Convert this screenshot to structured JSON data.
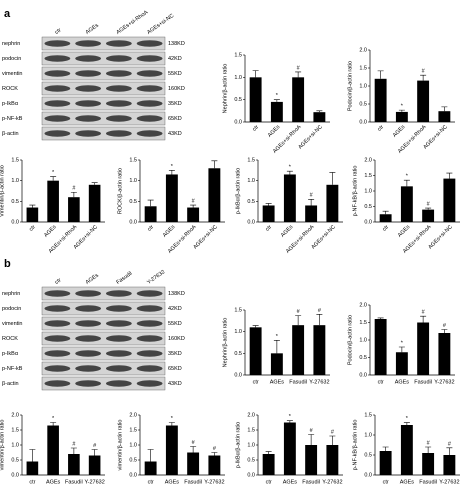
{
  "panel_a": {
    "label": "a",
    "lanes": [
      "ctr",
      "AGEs",
      "AGEs+si-RhoA",
      "AGEs+si-NC"
    ],
    "proteins": [
      "nephrin",
      "podocin",
      "vimentin",
      "ROCK",
      "p-IkBα",
      "p-NF-kB",
      "β-actin"
    ],
    "sizes": [
      "138KD",
      "42KD",
      "55KD",
      "160KD",
      "35KD",
      "65KD",
      "43KD"
    ]
  },
  "panel_b": {
    "label": "b",
    "lanes": [
      "ctr",
      "AGEs",
      "Fasudil",
      "Y-27632"
    ],
    "proteins": [
      "nephrin",
      "podocin",
      "vimentin",
      "ROCK",
      "p-IkBα",
      "p-NF-kB",
      "β-actin"
    ],
    "sizes": [
      "138KD",
      "42KD",
      "55KD",
      "160KD",
      "35KD",
      "65KD",
      "43KD"
    ]
  },
  "chart_data": [
    {
      "type": "bar",
      "ylabel": "Nephrin/β-actin ratio",
      "categories": [
        "ctr",
        "AGEs",
        "AGEs+si-RhoA",
        "AGEs+si-NC"
      ],
      "values": [
        1.0,
        0.45,
        1.0,
        0.22
      ],
      "errors": [
        0.15,
        0.05,
        0.12,
        0.03
      ],
      "annotations": [
        null,
        "*",
        "#",
        null
      ],
      "color": "#000000",
      "ylim": [
        0,
        1.5
      ],
      "yticks": [
        {
          "value": 0,
          "label": "0.0"
        },
        {
          "value": 0.5,
          "label": "0.5"
        },
        {
          "value": 1,
          "label": "1.0"
        },
        {
          "value": 1.5,
          "label": "1.5"
        }
      ]
    },
    {
      "type": "bar",
      "ylabel": "Podocin/β-actin ratio",
      "categories": [
        "ctr",
        "AGEs",
        "AGEs+si-RhoA",
        "AGEs+si-NC"
      ],
      "values": [
        1.2,
        0.28,
        1.15,
        0.3
      ],
      "errors": [
        0.22,
        0.05,
        0.15,
        0.12
      ],
      "annotations": [
        null,
        "*",
        "#",
        null
      ],
      "color": "#000000",
      "ylim": [
        0,
        2
      ],
      "yticks": [
        {
          "value": 0,
          "label": "0.0"
        },
        {
          "value": 0.5,
          "label": "0.5"
        },
        {
          "value": 1,
          "label": "1.0"
        },
        {
          "value": 1.5,
          "label": "1.5"
        },
        {
          "value": 2,
          "label": "2.0"
        }
      ]
    },
    {
      "type": "bar",
      "ylabel": "Vimentin/β-actin ratio",
      "categories": [
        "ctr",
        "AGEs",
        "AGEs+si-RhoA",
        "AGEs+si-NC"
      ],
      "values": [
        0.35,
        1.0,
        0.6,
        0.9
      ],
      "errors": [
        0.06,
        0.1,
        0.12,
        0.05
      ],
      "annotations": [
        null,
        "*",
        "#",
        null
      ],
      "color": "#000000",
      "ylim": [
        0,
        1.5
      ],
      "yticks": [
        {
          "value": 0,
          "label": "0.0"
        },
        {
          "value": 0.5,
          "label": "0.5"
        },
        {
          "value": 1,
          "label": "1.0"
        },
        {
          "value": 1.5,
          "label": "1.5"
        }
      ]
    },
    {
      "type": "bar",
      "ylabel": "ROCK/β-actin ratio",
      "categories": [
        "ctr",
        "AGEs",
        "AGEs+si-RhoA",
        "AGEs+si-NC"
      ],
      "values": [
        0.38,
        1.15,
        0.35,
        1.3
      ],
      "errors": [
        0.15,
        0.1,
        0.06,
        0.18
      ],
      "annotations": [
        null,
        "*",
        "#",
        null
      ],
      "color": "#000000",
      "ylim": [
        0,
        1.5
      ],
      "yticks": [
        {
          "value": 0,
          "label": "0.0"
        },
        {
          "value": 0.5,
          "label": "0.5"
        },
        {
          "value": 1,
          "label": "1.0"
        },
        {
          "value": 1.5,
          "label": "1.5"
        }
      ]
    },
    {
      "type": "bar",
      "ylabel": "p-IkBα/β-actin ratio",
      "categories": [
        "ctr",
        "AGEs",
        "AGEs+si-RhoA",
        "AGEs+si-NC"
      ],
      "values": [
        0.4,
        1.15,
        0.4,
        0.9
      ],
      "errors": [
        0.05,
        0.08,
        0.15,
        0.3
      ],
      "annotations": [
        null,
        "*",
        "#",
        null
      ],
      "color": "#000000",
      "ylim": [
        0,
        1.5
      ],
      "yticks": [
        {
          "value": 0,
          "label": "0.0"
        },
        {
          "value": 0.5,
          "label": "0.5"
        },
        {
          "value": 1,
          "label": "1.0"
        },
        {
          "value": 1.5,
          "label": "1.5"
        }
      ]
    },
    {
      "type": "bar",
      "ylabel": "p-NF-kB/β-actin ratio",
      "categories": [
        "ctr",
        "AGEs",
        "AGEs+si-RhoA",
        "AGEs+si-NC"
      ],
      "values": [
        0.25,
        1.15,
        0.4,
        1.4
      ],
      "errors": [
        0.1,
        0.2,
        0.05,
        0.18
      ],
      "annotations": [
        null,
        "*",
        "#",
        null
      ],
      "color": "#000000",
      "ylim": [
        0,
        2
      ],
      "yticks": [
        {
          "value": 0,
          "label": "0.0"
        },
        {
          "value": 0.5,
          "label": "0.5"
        },
        {
          "value": 1,
          "label": "1.0"
        },
        {
          "value": 1.5,
          "label": "1.5"
        },
        {
          "value": 2,
          "label": "2.0"
        }
      ]
    },
    {
      "type": "bar",
      "ylabel": "Nephrin/β-actin ratio",
      "categories": [
        "ctr",
        "AGEs",
        "Fasudil",
        "Y-27632"
      ],
      "values": [
        1.1,
        0.5,
        1.15,
        1.15
      ],
      "errors": [
        0.04,
        0.3,
        0.22,
        0.25
      ],
      "annotations": [
        null,
        "*",
        "#",
        "#"
      ],
      "color": "#000000",
      "ylim": [
        0,
        1.5
      ],
      "yticks": [
        {
          "value": 0,
          "label": "0.0"
        },
        {
          "value": 0.5,
          "label": "0.5"
        },
        {
          "value": 1,
          "label": "1.0"
        },
        {
          "value": 1.5,
          "label": "1.5"
        }
      ]
    },
    {
      "type": "bar",
      "ylabel": "Podocin/β-actin ratio",
      "categories": [
        "ctr",
        "AGEs",
        "Fasudil",
        "Y-27632"
      ],
      "values": [
        1.6,
        0.65,
        1.5,
        1.2
      ],
      "errors": [
        0.03,
        0.15,
        0.18,
        0.1
      ],
      "annotations": [
        null,
        "*",
        "#",
        "#"
      ],
      "color": "#000000",
      "ylim": [
        0,
        2
      ],
      "yticks": [
        {
          "value": 0,
          "label": "0.0"
        },
        {
          "value": 0.5,
          "label": "0.5"
        },
        {
          "value": 1,
          "label": "1.0"
        },
        {
          "value": 1.5,
          "label": "1.5"
        },
        {
          "value": 2,
          "label": "2.0"
        }
      ]
    },
    {
      "type": "bar",
      "ylabel": "vimentin/β-actin ratio",
      "categories": [
        "ctr",
        "AGEs",
        "Fasudil",
        "Y-27632"
      ],
      "values": [
        0.45,
        1.65,
        0.7,
        0.65
      ],
      "errors": [
        0.4,
        0.1,
        0.2,
        0.2
      ],
      "annotations": [
        null,
        "*",
        "#",
        "#"
      ],
      "color": "#000000",
      "ylim": [
        0,
        2
      ],
      "yticks": [
        {
          "value": 0,
          "label": "0.0"
        },
        {
          "value": 0.5,
          "label": "0.5"
        },
        {
          "value": 1,
          "label": "1.0"
        },
        {
          "value": 1.5,
          "label": "1.5"
        },
        {
          "value": 2,
          "label": "2.0"
        }
      ]
    },
    {
      "type": "bar",
      "ylabel": "vimentin/β-actin ratio",
      "categories": [
        "ctr",
        "AGEs",
        "Fasudil",
        "Y-27632"
      ],
      "values": [
        0.45,
        1.65,
        0.75,
        0.65
      ],
      "errors": [
        0.4,
        0.1,
        0.2,
        0.1
      ],
      "annotations": [
        null,
        "*",
        "#",
        "#"
      ],
      "color": "#000000",
      "ylim": [
        0,
        2
      ],
      "yticks": [
        {
          "value": 0,
          "label": "0.0"
        },
        {
          "value": 0.5,
          "label": "0.5"
        },
        {
          "value": 1,
          "label": "1.0"
        },
        {
          "value": 1.5,
          "label": "1.5"
        },
        {
          "value": 2,
          "label": "2.0"
        }
      ]
    },
    {
      "type": "bar",
      "ylabel": "p-IkBα/β-actin ratio",
      "categories": [
        "ctr",
        "AGEs",
        "Fasudil",
        "Y-27632"
      ],
      "values": [
        0.7,
        1.75,
        1.0,
        1.0
      ],
      "errors": [
        0.08,
        0.06,
        0.35,
        0.3
      ],
      "annotations": [
        null,
        "*",
        "#",
        "#"
      ],
      "color": "#000000",
      "ylim": [
        0,
        2
      ],
      "yticks": [
        {
          "value": 0,
          "label": "0.0"
        },
        {
          "value": 0.5,
          "label": "0.5"
        },
        {
          "value": 1,
          "label": "1.0"
        },
        {
          "value": 1.5,
          "label": "1.5"
        },
        {
          "value": 2,
          "label": "2.0"
        }
      ]
    },
    {
      "type": "bar",
      "ylabel": "p-NF-kB/β-actin ratio",
      "categories": [
        "ctr",
        "AGEs",
        "Fasudil",
        "Y-27632"
      ],
      "values": [
        0.6,
        1.25,
        0.55,
        0.5
      ],
      "errors": [
        0.1,
        0.06,
        0.15,
        0.18
      ],
      "annotations": [
        null,
        "*",
        "#",
        "#"
      ],
      "color": "#000000",
      "ylim": [
        0,
        1.5
      ],
      "yticks": [
        {
          "value": 0,
          "label": "0.0"
        },
        {
          "value": 0.5,
          "label": "0.5"
        },
        {
          "value": 1,
          "label": "1.0"
        },
        {
          "value": 1.5,
          "label": "1.5"
        }
      ]
    }
  ]
}
